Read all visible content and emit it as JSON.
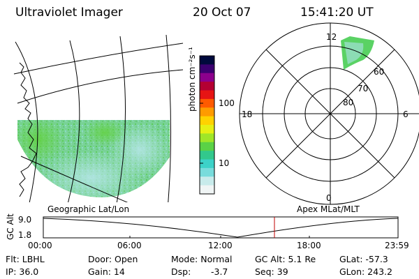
{
  "header": {
    "instrument": "Ultraviolet Imager",
    "date": "20 Oct 07",
    "time": "15:41:20 UT"
  },
  "colorbar": {
    "label": "photon cm⁻²s⁻¹",
    "ticks": [
      "100",
      "10"
    ],
    "colors": [
      "#000a3c",
      "#3c0070",
      "#8c008c",
      "#b40032",
      "#e61414",
      "#ff5a00",
      "#ff9b00",
      "#ffd200",
      "#e6f014",
      "#a0e628",
      "#5ad246",
      "#32c88c",
      "#3cd2c8",
      "#78dcdc",
      "#c8ebeb",
      "#f0f5f5"
    ]
  },
  "geo_panel": {
    "caption": "Geographic Lat/Lon"
  },
  "polar_panel": {
    "caption": "Apex MLat/MLT",
    "mlt_labels": [
      "12",
      "18",
      "6",
      "0"
    ],
    "mlat_labels": [
      "60",
      "70",
      "80"
    ]
  },
  "altitude_plot": {
    "ylabel": "GC Alt",
    "yticks": [
      "9.0",
      "1.8"
    ],
    "xticks": [
      "00:00",
      "06:00",
      "12:00",
      "18:00",
      "23:59"
    ],
    "marker_color": "#c00000"
  },
  "status": {
    "filter": "Flt: LBHL",
    "door": "Door: Open",
    "mode": "Mode: Normal",
    "gc_alt": "GC Alt: 5.1 Re",
    "glat": "GLat: -57.3",
    "ip": "IP: 36.0",
    "gain": "Gain: 14",
    "dsp_label": "Dsp:",
    "dsp_value": "-3.7",
    "seq": "Seq: 39",
    "glon": "GLon: 243.2"
  }
}
